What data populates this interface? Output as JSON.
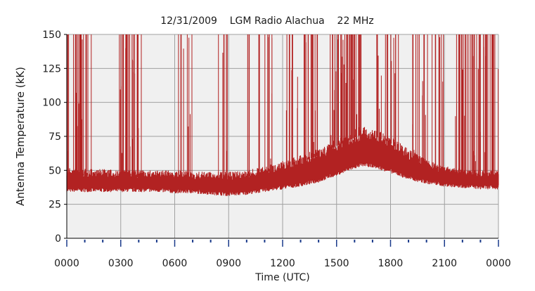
{
  "chart_data": {
    "type": "line",
    "title": "12/31/2009    LGM Radio Alachua    22 MHz",
    "xlabel": "Time (UTC)",
    "ylabel": "Antenna Temperature (kK)",
    "xlim": [
      0,
      24
    ],
    "ylim": [
      0,
      150
    ],
    "x_ticks": [
      0,
      3,
      6,
      9,
      12,
      15,
      18,
      21,
      24
    ],
    "x_tick_labels": [
      "0000",
      "0300",
      "0600",
      "0900",
      "1200",
      "1500",
      "1800",
      "2100",
      "0000"
    ],
    "y_ticks": [
      0,
      25,
      50,
      75,
      100,
      125,
      150
    ],
    "y_tick_labels": [
      "0",
      "25",
      "50",
      "75",
      "100",
      "125",
      "150"
    ],
    "grid": true,
    "series": [
      {
        "color": "#b22222",
        "baseline": {
          "x": [
            0,
            1,
            2,
            3,
            4,
            5,
            6,
            7,
            8,
            9,
            10,
            11,
            12,
            13,
            14,
            15,
            16,
            16.5,
            17,
            18,
            19,
            20,
            21,
            22,
            23,
            24
          ],
          "low": [
            34,
            34,
            34,
            34,
            34,
            34,
            33,
            33,
            32,
            31,
            32,
            34,
            36,
            38,
            41,
            46,
            51,
            53,
            52,
            48,
            43,
            40,
            38,
            37,
            36,
            36
          ],
          "high": [
            52,
            51,
            51,
            50,
            50,
            50,
            50,
            49,
            49,
            49,
            50,
            53,
            57,
            61,
            66,
            73,
            79,
            82,
            81,
            75,
            66,
            58,
            53,
            51,
            50,
            50
          ]
        },
        "clipped_spike_count": 180
      }
    ]
  },
  "colors": {
    "plot_background": "#f0f0f0",
    "grid": "#a0a0a0",
    "series": "#b22222"
  }
}
